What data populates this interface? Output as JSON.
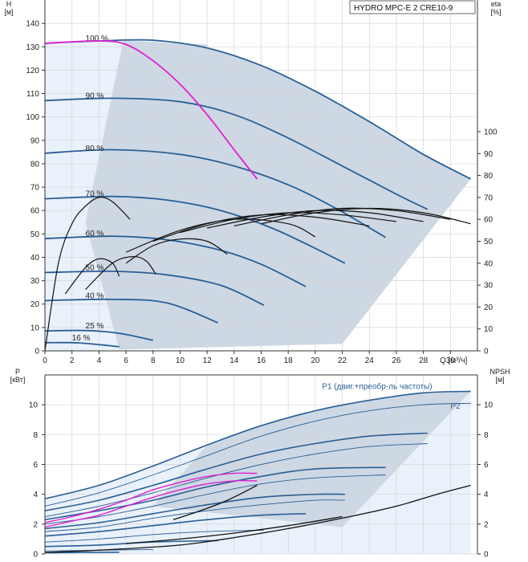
{
  "chart_data": [
    {
      "type": "line",
      "title": "HYDRO MPC-E 2 CRE10-9",
      "ylabel_left": "H\n[м]",
      "ylabel_right": "eta\n[%]",
      "xlabel": "Q [м³/ч]",
      "xlim": [
        0,
        32
      ],
      "ylim_left": [
        0,
        150
      ],
      "ylim_right": [
        0,
        100
      ],
      "x_ticks": [
        "0",
        "2",
        "4",
        "6",
        "8",
        "10",
        "12",
        "14",
        "16",
        "18",
        "20",
        "22",
        "24",
        "26",
        "28",
        "30",
        "Q [м³/ч]"
      ],
      "y_ticks_left": [
        "0",
        "10",
        "20",
        "30",
        "40",
        "50",
        "60",
        "70",
        "80",
        "90",
        "100",
        "110",
        "120",
        "130",
        "140"
      ],
      "y_ticks_right": [
        "0",
        "10",
        "20",
        "30",
        "40",
        "50",
        "60",
        "70",
        "80",
        "90",
        "100"
      ],
      "grid": true,
      "colors": {
        "curve": "#2a5f96",
        "highlight": "#e020d0",
        "eta": "#111111",
        "area": "#cdd8e4",
        "area_light": "#e9f1fa",
        "grid": "#d6d6d6"
      },
      "speed_labels": [
        "100 %",
        "90 %",
        "80 %",
        "70 %",
        "60 %",
        "50 %",
        "40 %",
        "25 %",
        "16 %"
      ],
      "speed_label_x": [
        3.0,
        3.0,
        3.0,
        3.0,
        3.0,
        3.0,
        3.0,
        3.0,
        2.0
      ],
      "series": [
        {
          "name": "100 %",
          "x": [
            0,
            4,
            8,
            12,
            16,
            20,
            24,
            28,
            31.5
          ],
          "y": [
            131.5,
            132.5,
            132.8,
            129.5,
            122,
            111,
            98,
            84,
            73.5
          ]
        },
        {
          "name": "90 %",
          "x": [
            0,
            5,
            10,
            14,
            18,
            22,
            26,
            28.3
          ],
          "y": [
            107,
            108,
            106.5,
            101,
            91,
            79,
            67,
            60.5
          ]
        },
        {
          "name": "80 %",
          "x": [
            0,
            5,
            10,
            14,
            18,
            21.5,
            25.2
          ],
          "y": [
            84.5,
            86,
            84,
            79,
            71,
            61,
            48.5
          ]
        },
        {
          "name": "70 %",
          "x": [
            0,
            5,
            9,
            13,
            17,
            22.2
          ],
          "y": [
            65,
            66,
            64.5,
            60,
            52,
            37.5
          ]
        },
        {
          "name": "60 %",
          "x": [
            0,
            5,
            9,
            13,
            16,
            19.3
          ],
          "y": [
            48,
            49,
            47.5,
            43,
            37,
            27.5
          ]
        },
        {
          "name": "50 %",
          "x": [
            0,
            5,
            9,
            13,
            16.2
          ],
          "y": [
            33.5,
            34,
            32.5,
            28,
            19.5
          ]
        },
        {
          "name": "40 %",
          "x": [
            0,
            5,
            9,
            12.8
          ],
          "y": [
            21.5,
            22,
            20.5,
            12
          ]
        },
        {
          "name": "25 %",
          "x": [
            0,
            3,
            5.5,
            8
          ],
          "y": [
            8.5,
            8.7,
            7.5,
            4.5
          ]
        },
        {
          "name": "16 %",
          "x": [
            0,
            2.5,
            5.5
          ],
          "y": [
            3.5,
            3.4,
            1.8
          ]
        }
      ],
      "highlight_curve": {
        "x": [
          0,
          4,
          6,
          8,
          10,
          12,
          14,
          15.7
        ],
        "y": [
          131.5,
          132.5,
          131,
          124,
          114,
          101,
          86,
          73.5
        ]
      },
      "eta_curves": [
        {
          "x": [
            0,
            1,
            2,
            3,
            4,
            5,
            6.3
          ],
          "y": [
            0,
            40,
            58,
            66,
            70,
            68,
            60
          ]
        },
        {
          "x": [
            1.5,
            3,
            4,
            5,
            5.5
          ],
          "y": [
            26,
            38,
            42,
            40,
            34
          ]
        },
        {
          "x": [
            3,
            5,
            6.5,
            7.5,
            8.2
          ],
          "y": [
            28,
            40,
            43,
            41,
            35
          ]
        },
        {
          "x": [
            6,
            8,
            10,
            12,
            13.5
          ],
          "y": [
            40,
            48,
            51,
            50,
            44
          ]
        },
        {
          "x": [
            6,
            10,
            14,
            18,
            20
          ],
          "y": [
            45,
            55,
            60,
            58,
            52
          ]
        },
        {
          "x": [
            8,
            12,
            16,
            20,
            24
          ],
          "y": [
            50,
            58,
            62,
            61,
            57
          ]
        },
        {
          "x": [
            10,
            14,
            18,
            22,
            26
          ],
          "y": [
            54,
            60,
            63,
            62,
            59
          ]
        },
        {
          "x": [
            12,
            16,
            20,
            24,
            28
          ],
          "y": [
            56,
            61,
            64,
            63,
            59
          ]
        },
        {
          "x": [
            14,
            18,
            22,
            26,
            30
          ],
          "y": [
            57,
            62,
            65,
            64,
            60
          ]
        },
        {
          "x": [
            16,
            20,
            24,
            28,
            31.5
          ],
          "y": [
            58,
            63,
            65,
            63,
            58
          ]
        }
      ]
    },
    {
      "type": "line",
      "ylabel_left": "P\n[кВт]",
      "ylabel_right": "NPSH\n[м]",
      "xlim": [
        0,
        32
      ],
      "ylim_left": [
        0,
        12
      ],
      "ylim_right": [
        0,
        12
      ],
      "y_ticks_left": [
        "0",
        "2",
        "4",
        "6",
        "8",
        "10"
      ],
      "y_ticks_right": [
        "0",
        "2",
        "4",
        "6",
        "8",
        "10"
      ],
      "grid": true,
      "series_labels": [
        {
          "name": "P1 (двиг.+преобр-ль частоты)",
          "x": 20.5,
          "y": 11.05
        },
        {
          "name": "P2",
          "x": 30.0,
          "y": 9.75
        }
      ],
      "series": [
        {
          "name": "P1 100 %",
          "x": [
            0,
            4,
            8,
            12,
            16,
            20,
            24,
            28,
            31.5
          ],
          "y": [
            3.7,
            4.6,
            5.9,
            7.3,
            8.6,
            9.6,
            10.3,
            10.8,
            10.9
          ]
        },
        {
          "name": "P2 100 %",
          "x": [
            0,
            4,
            8,
            12,
            16,
            20,
            24,
            28,
            31.5
          ],
          "y": [
            3.2,
            4.1,
            5.3,
            6.6,
            7.9,
            8.9,
            9.6,
            10.0,
            10.1
          ]
        },
        {
          "name": "P1 90 %",
          "x": [
            0,
            4,
            8,
            12,
            16,
            20,
            24,
            28.3
          ],
          "y": [
            2.9,
            3.6,
            4.6,
            5.7,
            6.7,
            7.4,
            7.9,
            8.1
          ]
        },
        {
          "name": "P2 90 %",
          "x": [
            0,
            4,
            8,
            12,
            16,
            20,
            24,
            28.3
          ],
          "y": [
            2.5,
            3.2,
            4.1,
            5.1,
            6.0,
            6.7,
            7.2,
            7.4
          ]
        },
        {
          "name": "P1 80 %",
          "x": [
            0,
            4,
            8,
            12,
            16,
            20,
            25.2
          ],
          "y": [
            2.3,
            2.9,
            3.6,
            4.5,
            5.2,
            5.7,
            5.8
          ]
        },
        {
          "name": "P2 80 %",
          "x": [
            0,
            4,
            8,
            12,
            16,
            20,
            25.2
          ],
          "y": [
            2.0,
            2.5,
            3.2,
            4.0,
            4.7,
            5.1,
            5.3
          ]
        },
        {
          "name": "P1 70 %",
          "x": [
            0,
            4,
            8,
            12,
            16,
            20,
            22.2
          ],
          "y": [
            1.7,
            2.1,
            2.7,
            3.3,
            3.8,
            4.0,
            4.0
          ]
        },
        {
          "name": "P2 70 %",
          "x": [
            0,
            4,
            8,
            12,
            16,
            20,
            22.2
          ],
          "y": [
            1.5,
            1.8,
            2.4,
            2.9,
            3.3,
            3.6,
            3.6
          ]
        },
        {
          "name": "P1 60 %",
          "x": [
            0,
            4,
            8,
            12,
            16,
            19.3
          ],
          "y": [
            1.2,
            1.5,
            1.9,
            2.3,
            2.6,
            2.7
          ]
        },
        {
          "name": "P1 50 %",
          "x": [
            0,
            4,
            8,
            12,
            16.2
          ],
          "y": [
            0.8,
            1.0,
            1.3,
            1.5,
            1.6
          ]
        },
        {
          "name": "P1 40 %",
          "x": [
            0,
            4,
            8,
            12.8
          ],
          "y": [
            0.5,
            0.6,
            0.8,
            0.9
          ]
        },
        {
          "name": "P1 25 %",
          "x": [
            0,
            4,
            8
          ],
          "y": [
            0.2,
            0.25,
            0.3
          ]
        },
        {
          "name": "P1 16 %",
          "x": [
            0,
            3,
            5.5
          ],
          "y": [
            0.08,
            0.1,
            0.12
          ]
        }
      ],
      "highlight_curves": [
        {
          "x": [
            0,
            2,
            4,
            6,
            8,
            10,
            12,
            14,
            15.7
          ],
          "y": [
            2.1,
            2.5,
            3.0,
            3.6,
            4.3,
            4.8,
            5.2,
            5.4,
            5.4
          ]
        },
        {
          "x": [
            0,
            2,
            4,
            6,
            8,
            10,
            12,
            14,
            15.7
          ],
          "y": [
            1.8,
            2.2,
            2.6,
            3.2,
            3.8,
            4.3,
            4.7,
            4.9,
            4.9
          ]
        }
      ],
      "npsh_curves": [
        {
          "x": [
            0,
            5,
            10,
            14,
            18,
            22,
            26,
            29,
            31.5
          ],
          "y": [
            0.1,
            0.3,
            0.6,
            1.1,
            1.7,
            2.4,
            3.2,
            4.0,
            4.6
          ]
        },
        {
          "x": [
            9.5,
            11.5,
            13.5,
            15.7
          ],
          "y": [
            2.3,
            2.9,
            3.6,
            4.6
          ]
        },
        {
          "x": [
            6,
            10,
            14,
            18,
            22
          ],
          "y": [
            0.7,
            1.0,
            1.4,
            1.9,
            2.5
          ]
        }
      ]
    }
  ]
}
